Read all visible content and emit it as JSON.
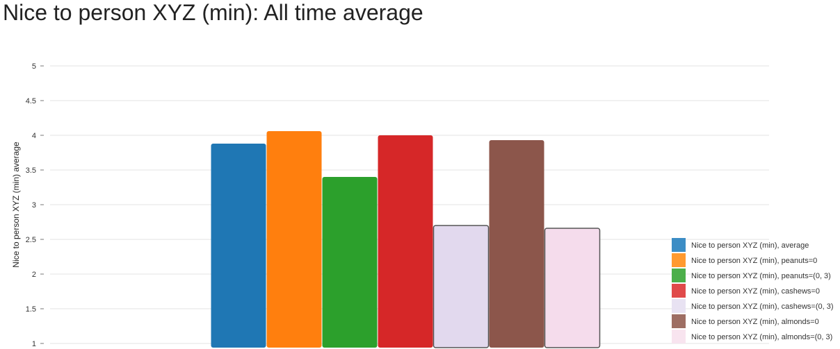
{
  "title": "Nice to person XYZ (min): All time average",
  "chart_data": {
    "type": "bar",
    "title": "Nice to person XYZ (min): All time average",
    "xlabel": "",
    "ylabel": "Nice to person XYZ (min) average",
    "ylim": [
      1,
      5
    ],
    "yticks": [
      "1",
      "1.5",
      "2",
      "2.5",
      "3",
      "3.5",
      "4",
      "4.5",
      "5"
    ],
    "grid": true,
    "legend_position": "bottom-right",
    "series": [
      {
        "name": "Nice to person XYZ (min), average",
        "value": 3.88,
        "color": "#1f77b4",
        "highlight": false
      },
      {
        "name": "Nice to person XYZ (min), peanuts=0",
        "value": 4.06,
        "color": "#ff7f0e",
        "highlight": false
      },
      {
        "name": "Nice to person XYZ (min), peanuts=(0, 3)",
        "value": 3.4,
        "color": "#2ca02c",
        "highlight": false
      },
      {
        "name": "Nice to person XYZ (min), cashews=0",
        "value": 4.0,
        "color": "#d62728",
        "highlight": false
      },
      {
        "name": "Nice to person XYZ (min), cashews=(0, 3)",
        "value": 2.7,
        "color": "#e2d9ee",
        "highlight": true
      },
      {
        "name": "Nice to person XYZ (min), almonds=0",
        "value": 3.93,
        "color": "#8c564b",
        "highlight": false
      },
      {
        "name": "Nice to person XYZ (min), almonds=(0, 3)",
        "value": 2.66,
        "color": "#f5dcec",
        "highlight": true
      }
    ],
    "legend_swatch_colors": [
      "#3c8dc5",
      "#ff9a2f",
      "#4caf4a",
      "#e04a4a",
      "#e8e2f2",
      "#9e6e63",
      "#f8e4ef"
    ]
  }
}
